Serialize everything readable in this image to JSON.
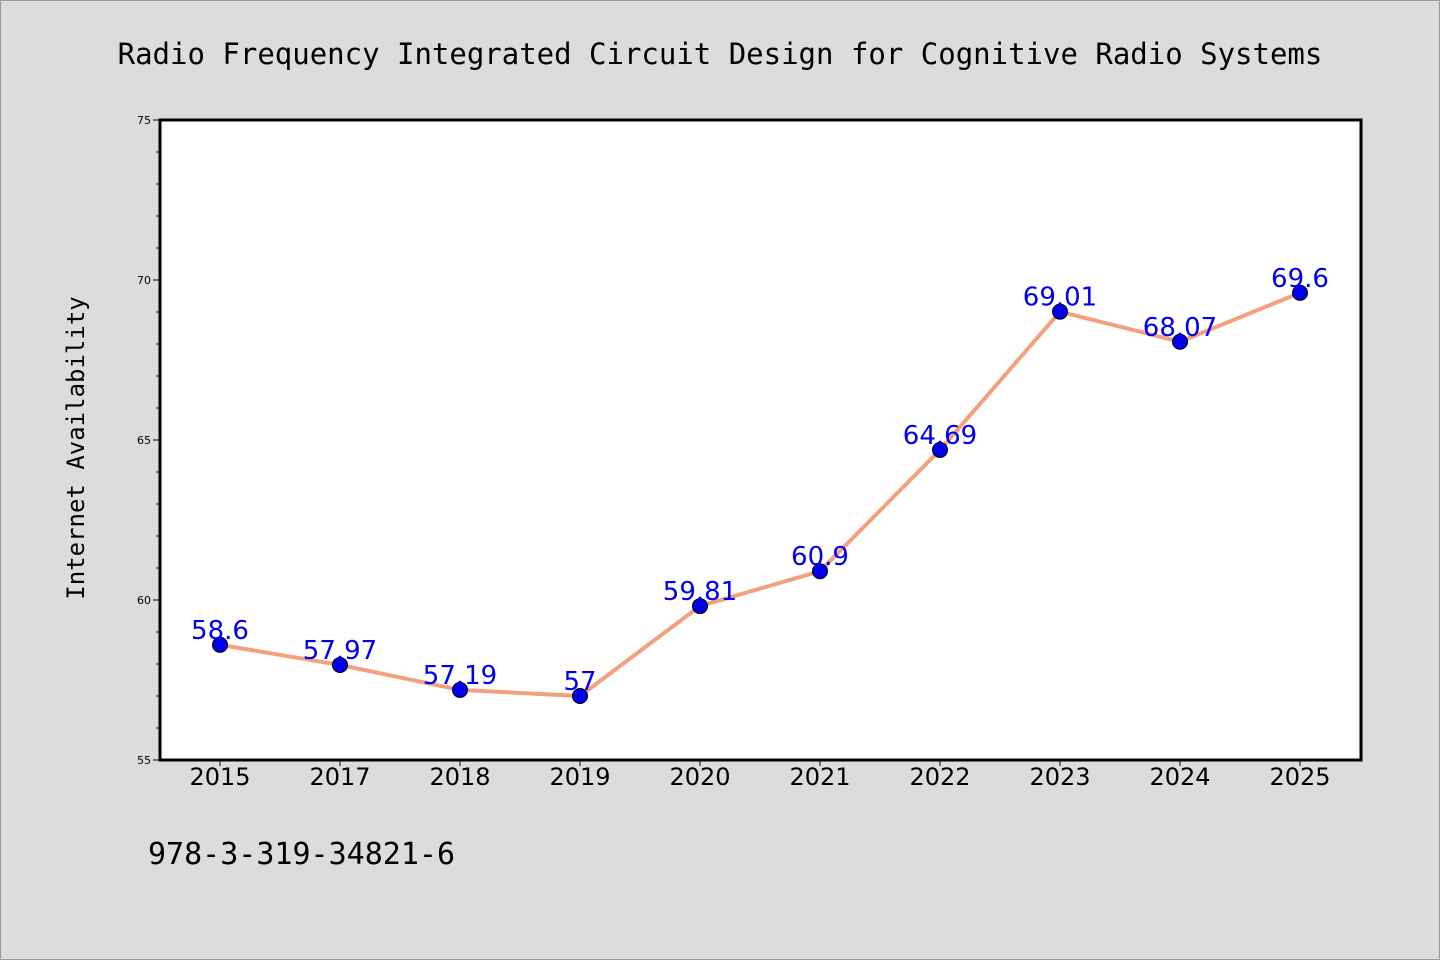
{
  "chart_data": {
    "type": "line",
    "title": "Radio Frequency Integrated Circuit Design for Cognitive Radio Systems",
    "xlabel": "",
    "ylabel": "Internet Availability",
    "categories": [
      "2015",
      "2017",
      "2018",
      "2019",
      "2020",
      "2021",
      "2022",
      "2023",
      "2024",
      "2025"
    ],
    "series": [
      {
        "values": [
          58.6,
          57.97,
          57.19,
          57,
          59.81,
          60.9,
          64.69,
          69.01,
          68.07,
          69.6
        ],
        "data_labels": [
          "58.6",
          "57.97",
          "57.19",
          "57",
          "59.81",
          "60.9",
          "64.69",
          "69.01",
          "68.07",
          "69.6"
        ]
      }
    ],
    "ylim": [
      55,
      75
    ],
    "yticks": [
      "55",
      "60",
      "65",
      "70",
      "75"
    ],
    "grid": false,
    "legend": "none",
    "colors": {
      "line": "#f4a07e",
      "marker": "#0000ee",
      "label": "#0000ee",
      "plot_bg": "#ffffff",
      "figure_bg": "#dcdcdc"
    }
  },
  "footer": {
    "isbn": "978-3-319-34821-6"
  }
}
